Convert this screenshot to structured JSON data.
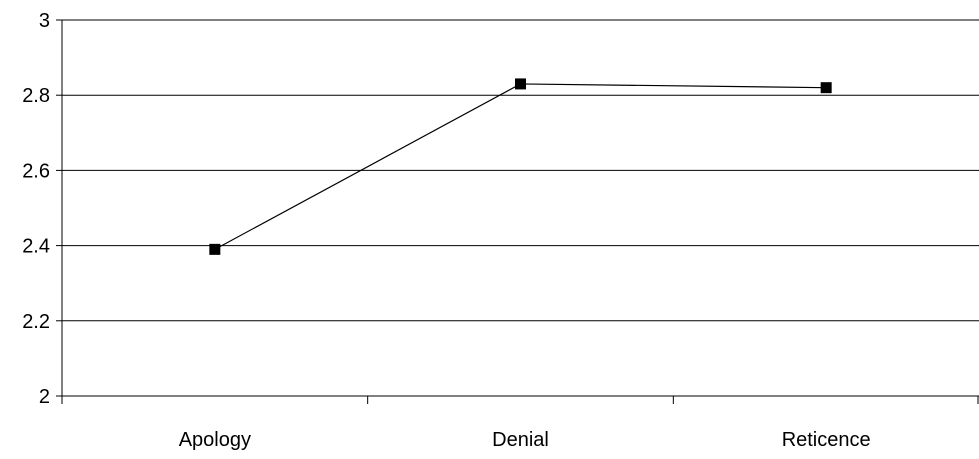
{
  "chart_data": {
    "type": "line",
    "title": "",
    "xlabel": "",
    "ylabel": "",
    "categories": [
      "Apology",
      "Denial",
      "Reticence"
    ],
    "series": [
      {
        "values": [
          2.39,
          2.83,
          2.82
        ],
        "color": "#000000",
        "marker": "square"
      }
    ],
    "ylim": [
      2,
      3
    ],
    "yticks": [
      "2",
      "2.2",
      "2.4",
      "2.6",
      "2.8",
      "3"
    ],
    "grid": true,
    "legend": "none"
  }
}
